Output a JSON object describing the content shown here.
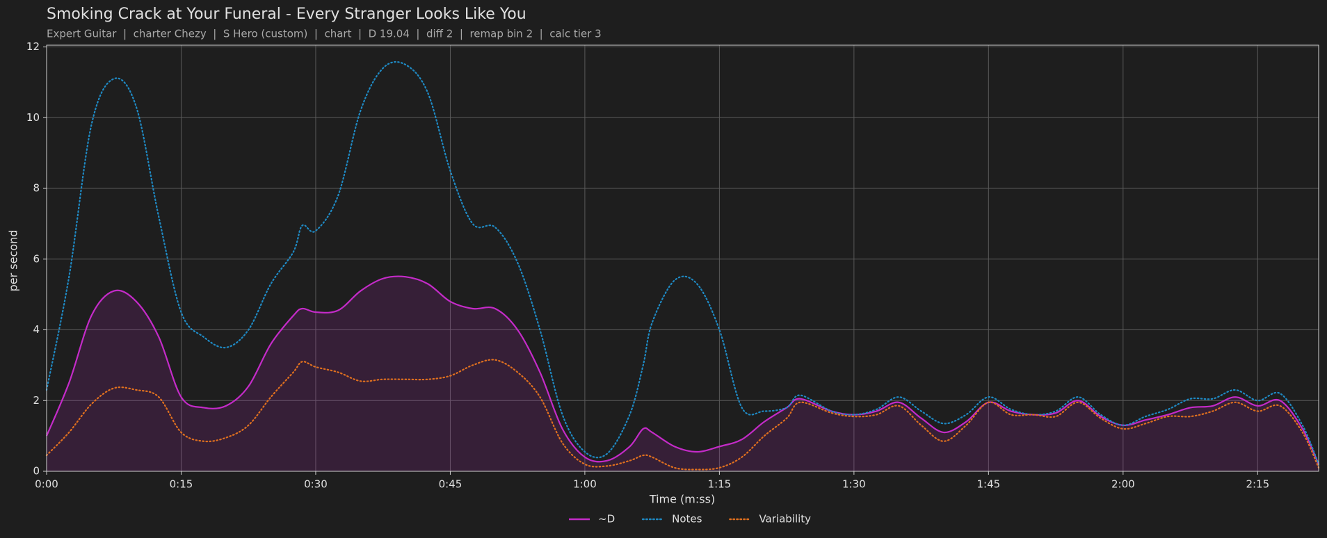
{
  "chart_data": {
    "type": "line",
    "title": "Smoking Crack at Your Funeral - Every Stranger Looks Like You",
    "subtitle": "Expert Guitar  |  charter Chezy  |  S Hero (custom)  |  chart  |  D 19.04  |  diff 2  |  remap bin 2  |  calc tier 3",
    "x_label": "Time (m:ss)",
    "y_label": "per second",
    "x": [
      0,
      2.5,
      5,
      7.5,
      10,
      12.5,
      15,
      17.5,
      20,
      22.5,
      25,
      27.5,
      28.5,
      30,
      32.5,
      35,
      37.5,
      40,
      42.5,
      45,
      47.5,
      50,
      52.5,
      55,
      57.5,
      60,
      62.5,
      65,
      66.5,
      67.5,
      70,
      72.5,
      75,
      77.5,
      80,
      82.5,
      84,
      87.5,
      90,
      92.5,
      95,
      97.5,
      100,
      102.5,
      105,
      107.5,
      110,
      112.5,
      115,
      117.5,
      120,
      122.5,
      125,
      127.5,
      130,
      132.5,
      135,
      137.5,
      140,
      141.8
    ],
    "series": [
      {
        "name": "~D",
        "color": "#c42bc8",
        "style": "solid",
        "fill": true,
        "values": [
          1.0,
          2.5,
          4.4,
          5.1,
          4.8,
          3.8,
          2.1,
          1.8,
          1.85,
          2.4,
          3.6,
          4.4,
          4.6,
          4.5,
          4.55,
          5.1,
          5.45,
          5.5,
          5.3,
          4.8,
          4.6,
          4.6,
          4.0,
          2.8,
          1.2,
          0.4,
          0.3,
          0.7,
          1.2,
          1.1,
          0.7,
          0.55,
          0.7,
          0.9,
          1.4,
          1.8,
          2.05,
          1.7,
          1.6,
          1.7,
          1.95,
          1.5,
          1.1,
          1.4,
          1.95,
          1.7,
          1.6,
          1.65,
          2.0,
          1.55,
          1.3,
          1.45,
          1.6,
          1.8,
          1.85,
          2.1,
          1.85,
          2.0,
          1.2,
          0.2
        ]
      },
      {
        "name": "Notes",
        "color": "#1f8ac4",
        "style": "dotted",
        "fill": false,
        "values": [
          2.3,
          5.5,
          9.8,
          11.1,
          10.3,
          7.2,
          4.5,
          3.8,
          3.5,
          4.0,
          5.3,
          6.2,
          6.95,
          6.8,
          7.8,
          10.2,
          11.4,
          11.5,
          10.7,
          8.5,
          7.0,
          6.9,
          5.9,
          4.0,
          1.6,
          0.55,
          0.5,
          1.6,
          3.0,
          4.2,
          5.4,
          5.3,
          4.0,
          1.8,
          1.7,
          1.8,
          2.15,
          1.7,
          1.6,
          1.75,
          2.1,
          1.7,
          1.35,
          1.6,
          2.1,
          1.75,
          1.6,
          1.7,
          2.1,
          1.6,
          1.3,
          1.55,
          1.75,
          2.05,
          2.05,
          2.3,
          2.0,
          2.2,
          1.3,
          0.2
        ]
      },
      {
        "name": "Variability",
        "color": "#e0701f",
        "style": "dotted",
        "fill": false,
        "values": [
          0.45,
          1.1,
          1.9,
          2.35,
          2.3,
          2.1,
          1.1,
          0.85,
          0.95,
          1.3,
          2.1,
          2.8,
          3.1,
          2.95,
          2.8,
          2.55,
          2.6,
          2.6,
          2.6,
          2.7,
          3.0,
          3.15,
          2.8,
          2.1,
          0.8,
          0.2,
          0.15,
          0.3,
          0.45,
          0.4,
          0.1,
          0.05,
          0.1,
          0.4,
          1.0,
          1.5,
          1.95,
          1.65,
          1.55,
          1.6,
          1.85,
          1.3,
          0.85,
          1.3,
          1.95,
          1.6,
          1.6,
          1.55,
          1.95,
          1.5,
          1.2,
          1.35,
          1.55,
          1.55,
          1.7,
          1.95,
          1.7,
          1.85,
          1.1,
          0.1
        ]
      }
    ],
    "xlim": [
      0,
      141.8
    ],
    "ylim": [
      0,
      12.05
    ],
    "xticks": [
      {
        "value": 0,
        "label": "0:00"
      },
      {
        "value": 15,
        "label": "0:15"
      },
      {
        "value": 30,
        "label": "0:30"
      },
      {
        "value": 45,
        "label": "0:45"
      },
      {
        "value": 60,
        "label": "1:00"
      },
      {
        "value": 75,
        "label": "1:15"
      },
      {
        "value": 90,
        "label": "1:30"
      },
      {
        "value": 105,
        "label": "1:45"
      },
      {
        "value": 120,
        "label": "2:00"
      },
      {
        "value": 135,
        "label": "2:15"
      }
    ],
    "yticks": [
      0,
      2,
      4,
      6,
      8,
      10,
      12
    ],
    "grid": true,
    "legend": "bottom"
  }
}
